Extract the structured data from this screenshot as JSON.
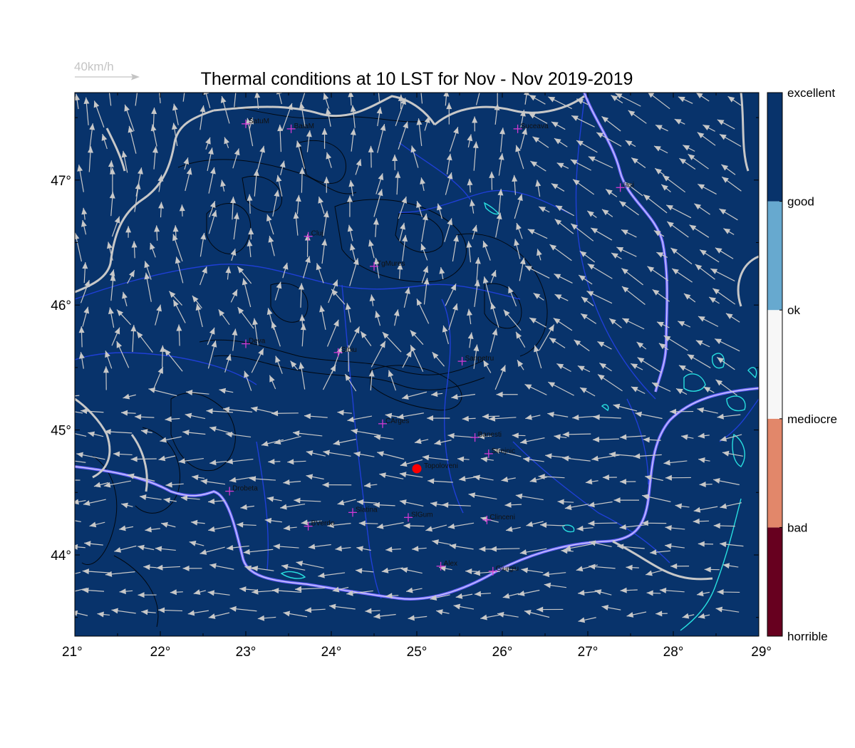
{
  "title": "Thermal conditions at 10 LST for Nov - Nov  2019-2019",
  "scale_arrow": {
    "label": "40km/h"
  },
  "map_extent": {
    "lon": [
      21,
      29
    ],
    "lat": [
      43.35,
      47.7
    ]
  },
  "x_ticks": [
    "21°",
    "22°",
    "23°",
    "24°",
    "25°",
    "26°",
    "27°",
    "28°",
    "29°"
  ],
  "y_ticks": [
    "44°",
    "45°",
    "46°",
    "47°"
  ],
  "legend": {
    "labels": [
      "excellent",
      "good",
      "ok",
      "mediocre",
      "bad",
      "horrible"
    ],
    "colors": [
      "#67001f",
      "#e2876a",
      "#f7f7f7",
      "#67a9cf",
      "#08336b"
    ]
  },
  "colors": {
    "background": "#08336b",
    "arrows": "#c8c8c8",
    "borders": "#c8c8c8",
    "rivers": "#1f3fd6",
    "lakes": "#28e0e0",
    "terrain_contours": "#000000",
    "city_marker": "#d23ad2",
    "highlight_point": "#ff0000"
  },
  "cities": [
    {
      "name": "SatuM",
      "lon": 23.0,
      "lat": 47.45
    },
    {
      "name": "BaiaM",
      "lon": 23.53,
      "lat": 47.41
    },
    {
      "name": "Suceava",
      "lon": 26.18,
      "lat": 47.41
    },
    {
      "name": "Iasi",
      "lon": 27.38,
      "lat": 46.94
    },
    {
      "name": "Cluj",
      "lon": 23.73,
      "lat": 46.55
    },
    {
      "name": "TgMures",
      "lon": 24.5,
      "lat": 46.31
    },
    {
      "name": "Deva",
      "lon": 23.0,
      "lat": 45.69
    },
    {
      "name": "Sibiu",
      "lon": 24.08,
      "lat": 45.62
    },
    {
      "name": "Sanpetru",
      "lon": 25.53,
      "lat": 45.55
    },
    {
      "name": "CArges",
      "lon": 24.6,
      "lat": 45.05
    },
    {
      "name": "Banesti",
      "lon": 25.68,
      "lat": 44.94
    },
    {
      "name": "Strejnic",
      "lon": 25.84,
      "lat": 44.81
    },
    {
      "name": "Drobeta",
      "lon": 22.81,
      "lat": 44.51
    },
    {
      "name": "Slatina",
      "lon": 24.25,
      "lat": 44.34
    },
    {
      "name": "SlGum",
      "lon": 24.9,
      "lat": 44.3
    },
    {
      "name": "Clinceni",
      "lon": 25.82,
      "lat": 44.28
    },
    {
      "name": "BVerde",
      "lon": 23.73,
      "lat": 44.23
    },
    {
      "name": "Alex",
      "lon": 25.28,
      "lat": 43.91
    },
    {
      "name": "Giurgiu",
      "lon": 25.89,
      "lat": 43.87
    }
  ],
  "highlight": {
    "name": "Topoloveni",
    "lon": 25.0,
    "lat": 44.69
  }
}
